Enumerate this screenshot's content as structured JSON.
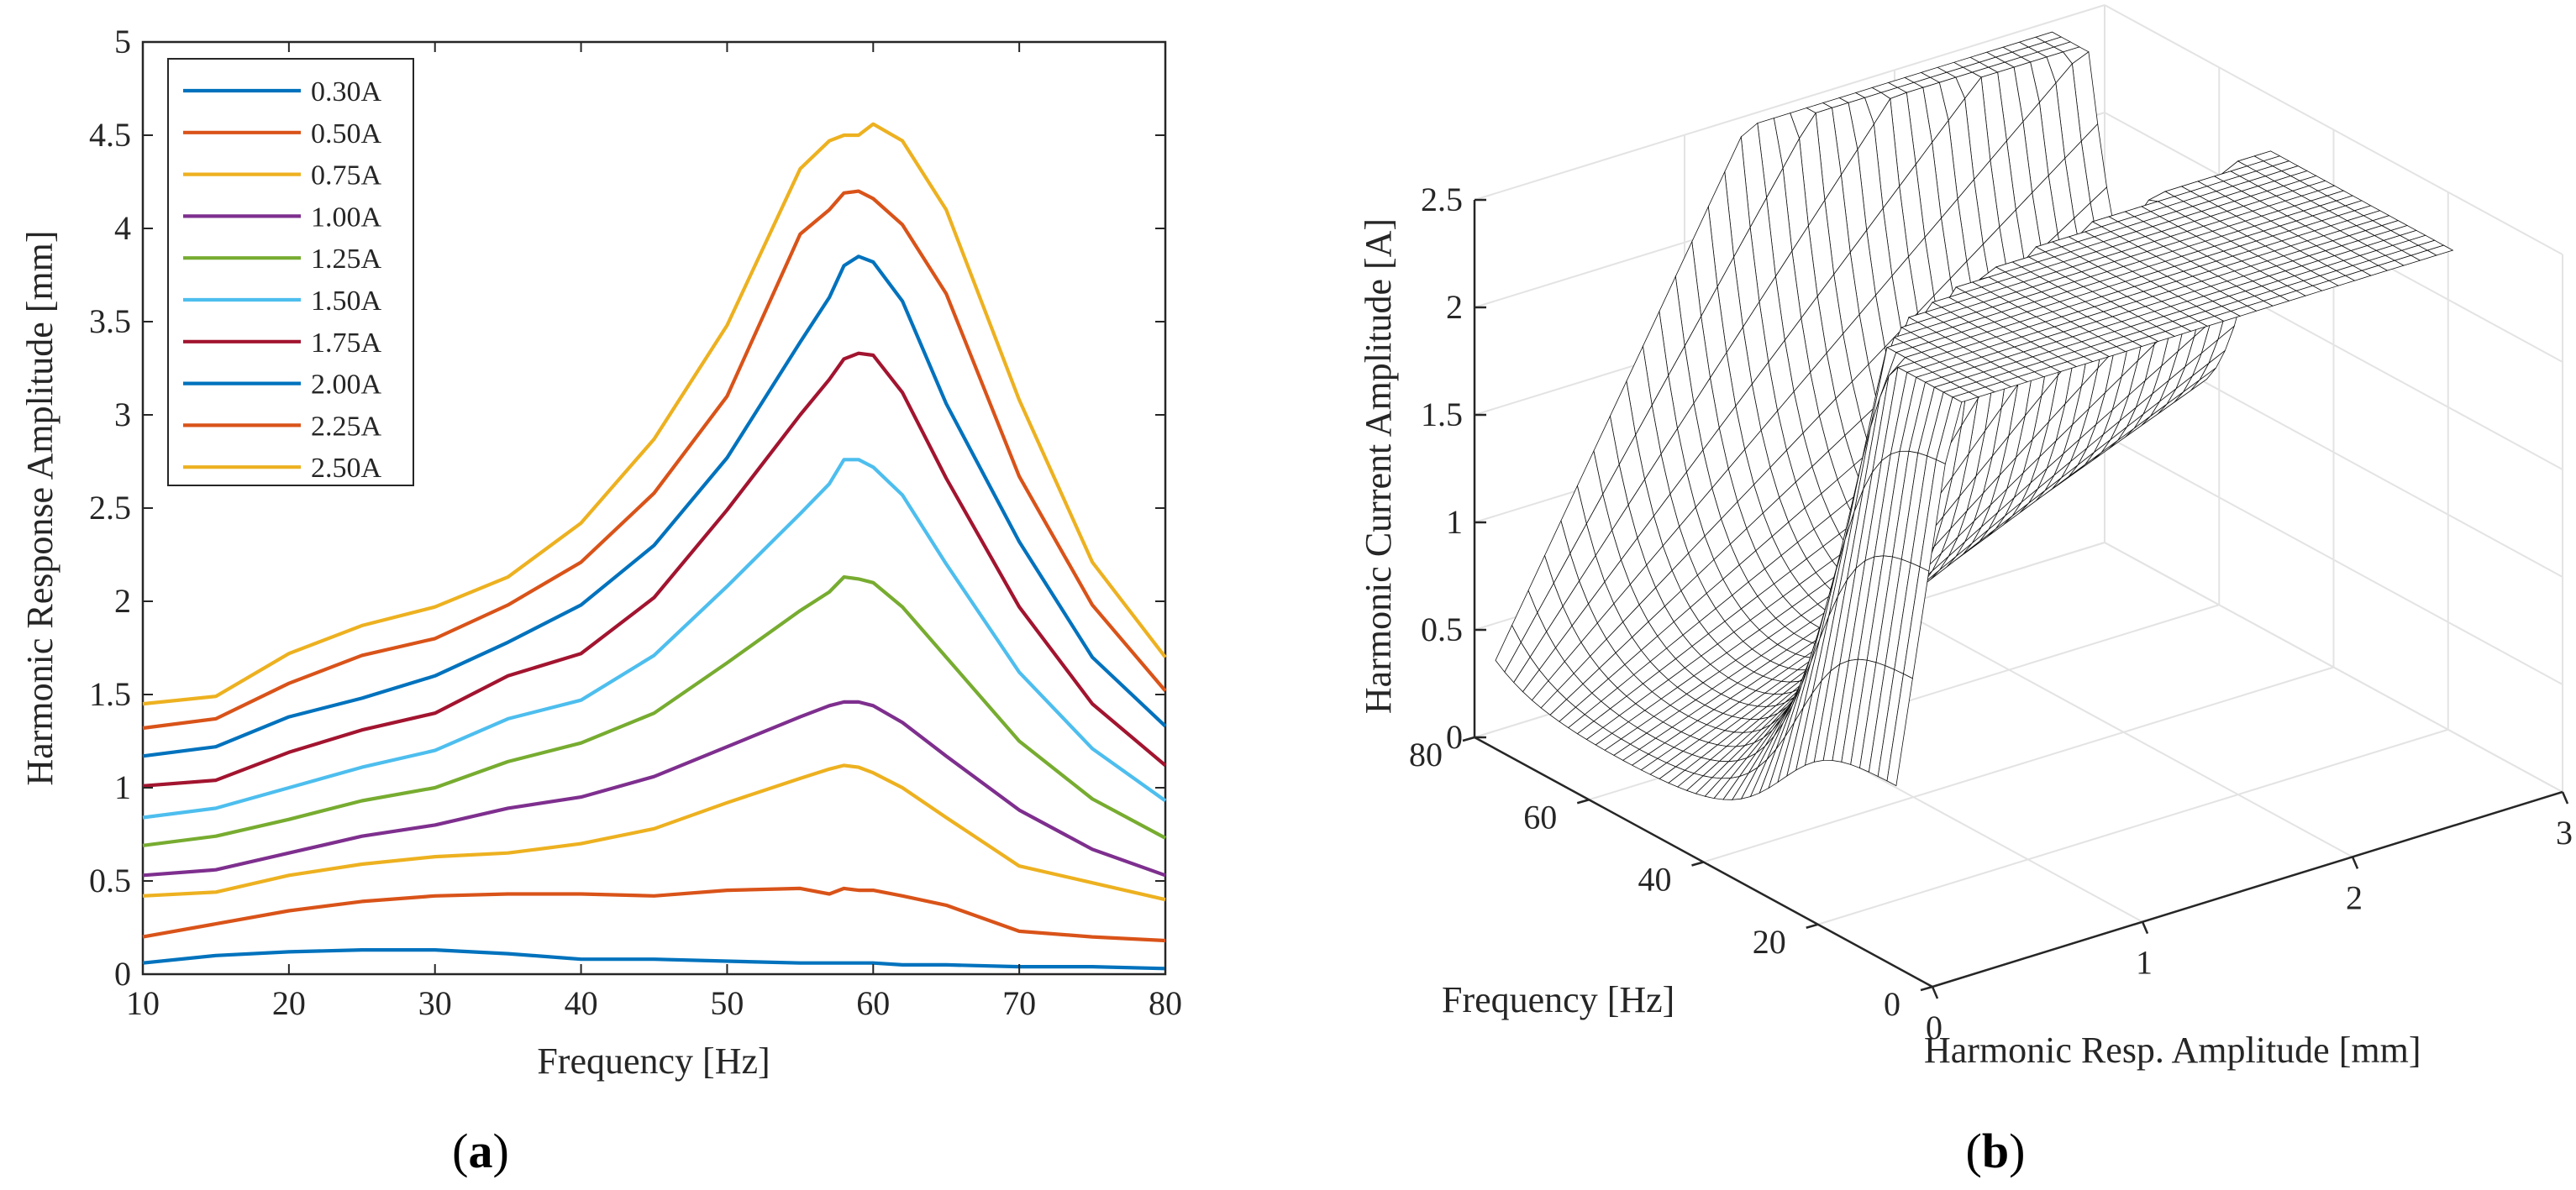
{
  "figure": {
    "panel_a_label": "a",
    "panel_b_label": "b"
  },
  "chart_data": [
    {
      "type": "line",
      "panel": "a",
      "xlabel": "Frequency [Hz]",
      "ylabel": "Harmonic Response Amplitude [mm]",
      "xlim": [
        10,
        80
      ],
      "ylim": [
        0,
        5
      ],
      "xticks": [
        10,
        20,
        30,
        40,
        50,
        60,
        70,
        80
      ],
      "yticks": [
        0,
        0.5,
        1,
        1.5,
        2,
        2.5,
        3,
        3.5,
        4,
        4.5,
        5
      ],
      "grid": false,
      "legend_position": "top-left",
      "x": [
        10,
        15,
        20,
        25,
        30,
        35,
        40,
        45,
        50,
        55,
        57,
        58,
        59,
        60,
        62,
        65,
        70,
        75,
        80
      ],
      "series": [
        {
          "name": "0.30A",
          "color": "#0072BD",
          "values": [
            0.06,
            0.1,
            0.12,
            0.13,
            0.13,
            0.11,
            0.08,
            0.08,
            0.07,
            0.06,
            0.06,
            0.06,
            0.06,
            0.06,
            0.05,
            0.05,
            0.04,
            0.04,
            0.03
          ]
        },
        {
          "name": "0.50A",
          "color": "#D95319",
          "values": [
            0.2,
            0.27,
            0.34,
            0.39,
            0.42,
            0.43,
            0.43,
            0.42,
            0.45,
            0.46,
            0.43,
            0.46,
            0.45,
            0.45,
            0.42,
            0.37,
            0.23,
            0.2,
            0.18
          ]
        },
        {
          "name": "0.75A",
          "color": "#EDB120",
          "values": [
            0.42,
            0.44,
            0.53,
            0.59,
            0.63,
            0.65,
            0.7,
            0.78,
            0.92,
            1.05,
            1.1,
            1.12,
            1.11,
            1.08,
            1.0,
            0.84,
            0.58,
            0.49,
            0.4
          ]
        },
        {
          "name": "1.00A",
          "color": "#7E2F8E",
          "values": [
            0.53,
            0.56,
            0.65,
            0.74,
            0.8,
            0.89,
            0.95,
            1.06,
            1.22,
            1.38,
            1.44,
            1.46,
            1.46,
            1.44,
            1.35,
            1.17,
            0.88,
            0.67,
            0.53
          ]
        },
        {
          "name": "1.25A",
          "color": "#77AC30",
          "values": [
            0.69,
            0.74,
            0.83,
            0.93,
            1.0,
            1.14,
            1.24,
            1.4,
            1.67,
            1.95,
            2.05,
            2.13,
            2.12,
            2.1,
            1.97,
            1.7,
            1.25,
            0.94,
            0.73
          ]
        },
        {
          "name": "1.50A",
          "color": "#4DBEEE",
          "values": [
            0.84,
            0.89,
            1.0,
            1.11,
            1.2,
            1.37,
            1.47,
            1.71,
            2.08,
            2.47,
            2.63,
            2.76,
            2.76,
            2.72,
            2.57,
            2.2,
            1.62,
            1.21,
            0.93
          ]
        },
        {
          "name": "1.75A",
          "color": "#A2142F",
          "values": [
            1.01,
            1.04,
            1.19,
            1.31,
            1.4,
            1.6,
            1.72,
            2.02,
            2.49,
            3.0,
            3.19,
            3.3,
            3.33,
            3.32,
            3.12,
            2.66,
            1.97,
            1.45,
            1.12
          ]
        },
        {
          "name": "2.00A",
          "color": "#0072BD",
          "values": [
            1.17,
            1.22,
            1.38,
            1.48,
            1.6,
            1.78,
            1.98,
            2.3,
            2.77,
            3.39,
            3.63,
            3.8,
            3.85,
            3.82,
            3.61,
            3.06,
            2.32,
            1.7,
            1.33
          ]
        },
        {
          "name": "2.25A",
          "color": "#D95319",
          "values": [
            1.32,
            1.37,
            1.56,
            1.71,
            1.8,
            1.98,
            2.21,
            2.58,
            3.1,
            3.97,
            4.1,
            4.19,
            4.2,
            4.16,
            4.02,
            3.65,
            2.67,
            1.98,
            1.52
          ]
        },
        {
          "name": "2.50A",
          "color": "#EDB120",
          "values": [
            1.45,
            1.49,
            1.72,
            1.87,
            1.97,
            2.13,
            2.42,
            2.87,
            3.48,
            4.32,
            4.47,
            4.5,
            4.5,
            4.56,
            4.47,
            4.1,
            3.08,
            2.21,
            1.7
          ]
        }
      ]
    },
    {
      "type": "surface",
      "panel": "b",
      "xlabel": "Harmonic Resp. Amplitude [mm]",
      "ylabel": "Frequency [Hz]",
      "zlabel": "Harmonic Current Amplitude [A]",
      "xlim": [
        0,
        3
      ],
      "ylim": [
        0,
        80
      ],
      "zlim": [
        0,
        2.5
      ],
      "xticks": [
        0,
        1,
        2,
        3
      ],
      "yticks": [
        0,
        20,
        40,
        60,
        80
      ],
      "zticks": [
        0,
        0.5,
        1,
        1.5,
        2,
        2.5
      ],
      "grid": true,
      "surface_color": "black mesh on white"
    }
  ]
}
